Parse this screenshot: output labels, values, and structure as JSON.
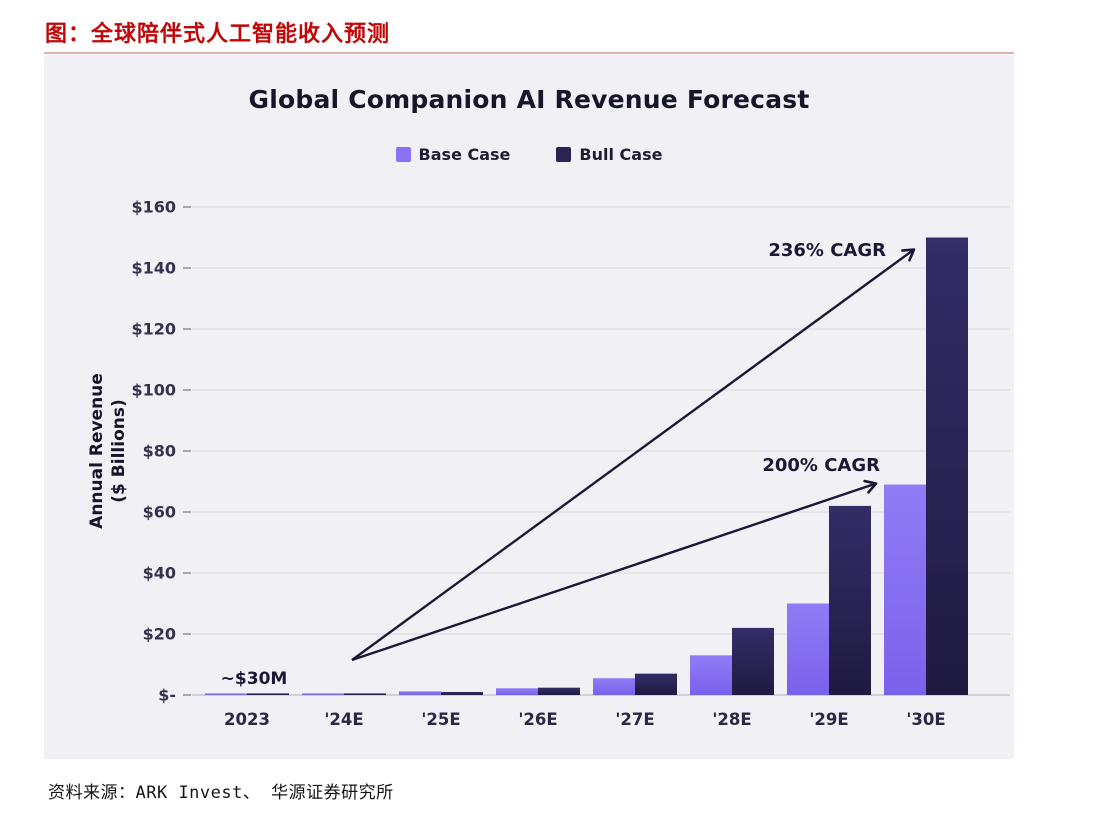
{
  "page": {
    "figure_title": "图：全球陪伴式人工智能收入预测",
    "source_note": "资料来源：ARK Invest、 华源证券研究所"
  },
  "chart_data": {
    "type": "bar",
    "title": "Global Companion AI Revenue Forecast",
    "ylabel_lines": [
      "Annual Revenue",
      "($ Billions)"
    ],
    "categories": [
      "2023",
      "'24E",
      "'25E",
      "'26E",
      "'27E",
      "'28E",
      "'29E",
      "'30E"
    ],
    "series": [
      {
        "name": "Base Case",
        "color": "#8A72F3",
        "gradient": [
          "#907CF6",
          "#7A61EC"
        ],
        "values": [
          0.03,
          0.3,
          1.2,
          2.2,
          5.5,
          13,
          30,
          69
        ]
      },
      {
        "name": "Bull Case",
        "color": "#2A2453",
        "gradient": [
          "#332D68",
          "#1F1A40"
        ],
        "values": [
          0.03,
          0.4,
          1.0,
          2.4,
          7,
          22,
          62,
          150
        ]
      }
    ],
    "ylim": [
      0,
      160
    ],
    "ytick_step": 20,
    "ytick_labels": [
      "$-",
      "$20",
      "$40",
      "$60",
      "$80",
      "$100",
      "$120",
      "$140",
      "$160"
    ],
    "grid": true,
    "legend_position": "top-center",
    "annotations": [
      {
        "id": "start_value",
        "text": "~$30M"
      },
      {
        "id": "bull_cagr",
        "text": "236% CAGR",
        "arrow": true,
        "target_series": "Bull Case",
        "target_category": "'30E"
      },
      {
        "id": "base_cagr",
        "text": "200% CAGR",
        "arrow": true,
        "target_series": "Base Case",
        "target_category": "'30E"
      }
    ],
    "panel_bg": "#F1F1F5",
    "grid_color": "#DCDCE2",
    "axis_line_color": "#C6C6D0",
    "axis_text_color": "#35314E",
    "annotation_color": "#1B1835"
  }
}
